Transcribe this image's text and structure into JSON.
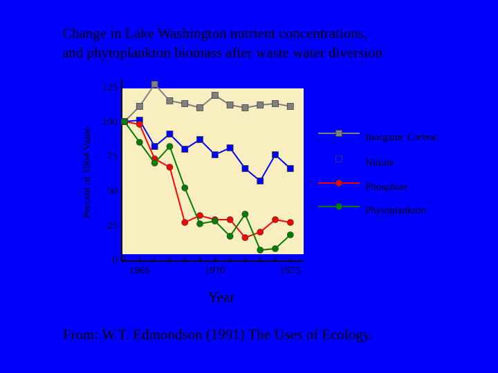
{
  "title_line1": "Change in Lake Washington nutrient concentrations,",
  "title_line2": "and phytoplankton biomass after waste water diversion",
  "source": "From: W.T. Edmondson (1991) The Uses of Ecology.",
  "colors": {
    "background": "#0000ff",
    "plot_area": "#f8eec0",
    "Inorganic Carbon": "#808080",
    "Nitrate": "#0000ff",
    "Phosphate": "#ff0000",
    "Phytoplankton": "#008000"
  },
  "chart_data": {
    "type": "line",
    "ylabel": "Percent of 1964 Value",
    "xlabel": "Year",
    "ylim": [
      0,
      125
    ],
    "xlim": [
      1964,
      1975.8
    ],
    "y_ticks": [
      "0",
      "25",
      "50",
      "75",
      "100",
      "125"
    ],
    "x_ticks": [
      "1965",
      "1970",
      "1975"
    ],
    "legend_position": "right",
    "grid": false,
    "series": [
      {
        "name": "Inorganic Carbon",
        "x": [
          1964,
          1965,
          1966,
          1967,
          1968,
          1969,
          1970,
          1971,
          1972,
          1973,
          1974,
          1975
        ],
        "y": [
          100,
          111,
          127,
          115,
          113,
          110,
          119,
          112,
          110,
          112,
          113,
          111
        ]
      },
      {
        "name": "Nitrate",
        "x": [
          1964,
          1965,
          1966,
          1967,
          1968,
          1969,
          1970,
          1971,
          1972,
          1973,
          1974,
          1975
        ],
        "y": [
          100,
          101,
          82,
          91,
          80,
          87,
          76,
          81,
          66,
          57,
          76,
          66
        ]
      },
      {
        "name": "Phosphate",
        "x": [
          1964,
          1965,
          1966,
          1967,
          1968,
          1969,
          1970,
          1971,
          1972,
          1973,
          1974,
          1975
        ],
        "y": [
          100,
          98,
          73,
          67,
          27,
          32,
          29,
          29,
          16,
          20,
          29,
          27
        ]
      },
      {
        "name": "Phytoplankton",
        "x": [
          1964,
          1965,
          1966,
          1967,
          1968,
          1969,
          1970,
          1971,
          1972,
          1973,
          1974,
          1975
        ],
        "y": [
          100,
          85,
          70,
          82,
          52,
          26,
          28,
          17,
          33,
          7,
          8,
          18
        ]
      }
    ]
  }
}
